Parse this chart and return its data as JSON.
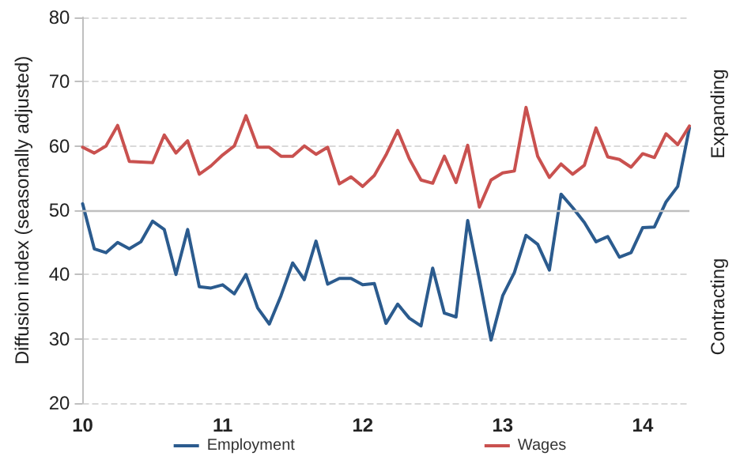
{
  "chart_data": {
    "type": "line",
    "ylabel": "Diffusion index (seasonally adjusted)",
    "categories": [
      "10",
      null,
      null,
      null,
      null,
      null,
      null,
      null,
      null,
      null,
      null,
      null,
      "11",
      null,
      null,
      null,
      null,
      null,
      null,
      null,
      null,
      null,
      null,
      null,
      "12",
      null,
      null,
      null,
      null,
      null,
      null,
      null,
      null,
      null,
      null,
      null,
      "13",
      null,
      null,
      null,
      null,
      null,
      null,
      null,
      null,
      null,
      null,
      null,
      "14",
      null,
      null,
      null,
      null
    ],
    "series": [
      {
        "name": "Employment",
        "color": "#2b5b8e",
        "values": [
          51,
          44.0,
          43.4,
          45.0,
          44.0,
          45.1,
          48.3,
          47.0,
          40.0,
          47.0,
          38.1,
          37.9,
          38.4,
          37.0,
          40.0,
          34.8,
          32.3,
          36.7,
          41.8,
          39.2,
          45.2,
          38.5,
          39.4,
          39.4,
          38.4,
          38.6,
          32.4,
          35.4,
          33.2,
          32.0,
          41.0,
          34.0,
          33.4,
          48.4,
          39.3,
          29.8,
          36.7,
          40.3,
          46.1,
          44.7,
          40.7,
          52.5,
          50.4,
          48.1,
          45.1,
          45.9,
          42.7,
          43.4,
          47.3,
          47.4,
          51.3,
          53.7,
          62.8
        ]
      },
      {
        "name": "Wages",
        "color": "#c9514f",
        "values": [
          59.8,
          58.9,
          60.0,
          63.2,
          57.6,
          57.5,
          57.4,
          61.7,
          58.9,
          60.8,
          55.6,
          56.9,
          58.6,
          60.0,
          64.7,
          59.8,
          59.8,
          58.4,
          58.4,
          60.0,
          58.7,
          59.8,
          54.1,
          55.2,
          53.7,
          55.4,
          58.6,
          62.4,
          58.0,
          54.7,
          54.2,
          58.4,
          54.3,
          60.1,
          50.5,
          54.7,
          55.8,
          56.1,
          66.0,
          58.4,
          55.1,
          57.2,
          55.6,
          57.0,
          62.8,
          58.3,
          57.9,
          56.7,
          58.8,
          58.2,
          61.9,
          60.2,
          63.1
        ]
      }
    ],
    "ylim": [
      20,
      80
    ],
    "yticks": [
      20,
      30,
      40,
      50,
      60,
      70,
      80
    ],
    "grid": "y",
    "legend": "bottom",
    "marker": "none",
    "line_style": "solid",
    "ref_lines": [
      {
        "axis": "y",
        "value": 50,
        "color": "#bfbfbf"
      }
    ],
    "annotations": [
      "Expanding",
      "Contracting"
    ]
  }
}
